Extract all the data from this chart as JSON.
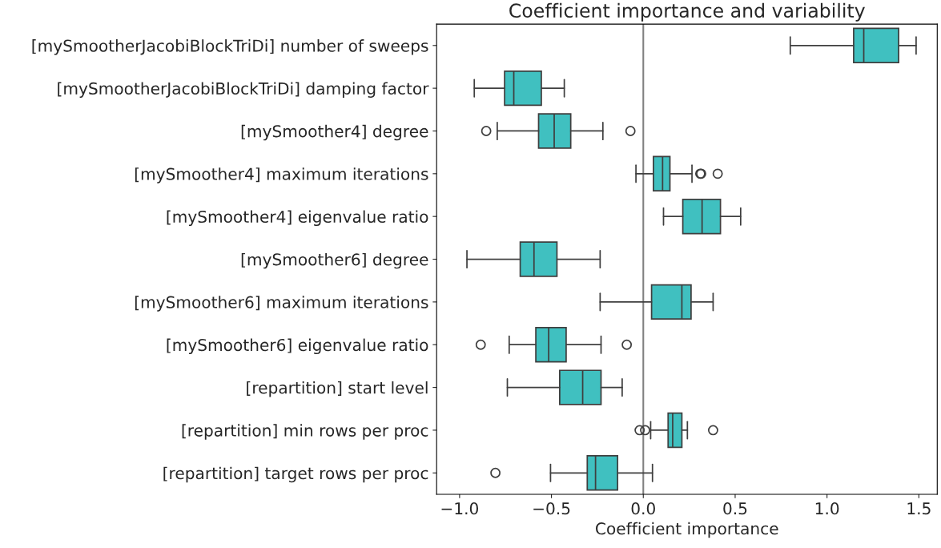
{
  "chart_data": {
    "type": "box",
    "title": "Coefficient importance and variability",
    "xlabel": "Coefficient importance",
    "orientation": "horizontal",
    "categories": [
      "[mySmootherJacobiBlockTriDi] number of sweeps",
      "[mySmootherJacobiBlockTriDi] damping factor",
      "[mySmoother4] degree",
      "[mySmoother4] maximum iterations",
      "[mySmoother4] eigenvalue ratio",
      "[mySmoother6] degree",
      "[mySmoother6] maximum iterations",
      "[mySmoother6] eigenvalue ratio",
      "[repartition] start level",
      "[repartition] min rows per proc",
      "[repartition] target rows per proc"
    ],
    "series": [
      {
        "color": "#40c0c0",
        "boxes": [
          {
            "low": 0.8,
            "q1": 1.145,
            "median": 1.2,
            "q3": 1.39,
            "high": 1.485
          },
          {
            "low": -0.92,
            "q1": -0.755,
            "median": -0.705,
            "q3": -0.555,
            "high": -0.43
          },
          {
            "low": -0.795,
            "q1": -0.57,
            "median": -0.485,
            "q3": -0.395,
            "high": -0.22,
            "outliers": [
              -0.855,
              -0.07
            ]
          },
          {
            "low": -0.04,
            "q1": 0.055,
            "median": 0.105,
            "q3": 0.145,
            "high": 0.265,
            "outliers": [
              0.31,
              0.315,
              0.405
            ]
          },
          {
            "low": 0.11,
            "q1": 0.215,
            "median": 0.32,
            "q3": 0.42,
            "high": 0.53
          },
          {
            "low": -0.96,
            "q1": -0.67,
            "median": -0.595,
            "q3": -0.47,
            "high": -0.235
          },
          {
            "low": -0.235,
            "q1": 0.045,
            "median": 0.21,
            "q3": 0.26,
            "high": 0.38
          },
          {
            "low": -0.73,
            "q1": -0.585,
            "median": -0.515,
            "q3": -0.42,
            "high": -0.23,
            "outliers": [
              -0.885,
              -0.09
            ]
          },
          {
            "low": -0.74,
            "q1": -0.455,
            "median": -0.33,
            "q3": -0.23,
            "high": -0.115
          },
          {
            "low": 0.04,
            "q1": 0.135,
            "median": 0.16,
            "q3": 0.21,
            "high": 0.24,
            "outliers": [
              -0.02,
              0.01,
              0.38
            ]
          },
          {
            "low": -0.505,
            "q1": -0.305,
            "median": -0.26,
            "q3": -0.14,
            "high": 0.05,
            "outliers": [
              -0.805
            ]
          }
        ]
      }
    ],
    "xlim": [
      -1.125,
      1.6
    ],
    "xticks": [
      {
        "value": -1.0,
        "label": "−1.0"
      },
      {
        "value": -0.5,
        "label": "−0.5"
      },
      {
        "value": 0.0,
        "label": "0.0"
      },
      {
        "value": 0.5,
        "label": "0.5"
      },
      {
        "value": 1.0,
        "label": "1.0"
      },
      {
        "value": 1.5,
        "label": "1.5"
      }
    ],
    "ref_lines": [
      {
        "axis": "x",
        "value": 0,
        "color": "#808080"
      }
    ],
    "grid": false
  }
}
